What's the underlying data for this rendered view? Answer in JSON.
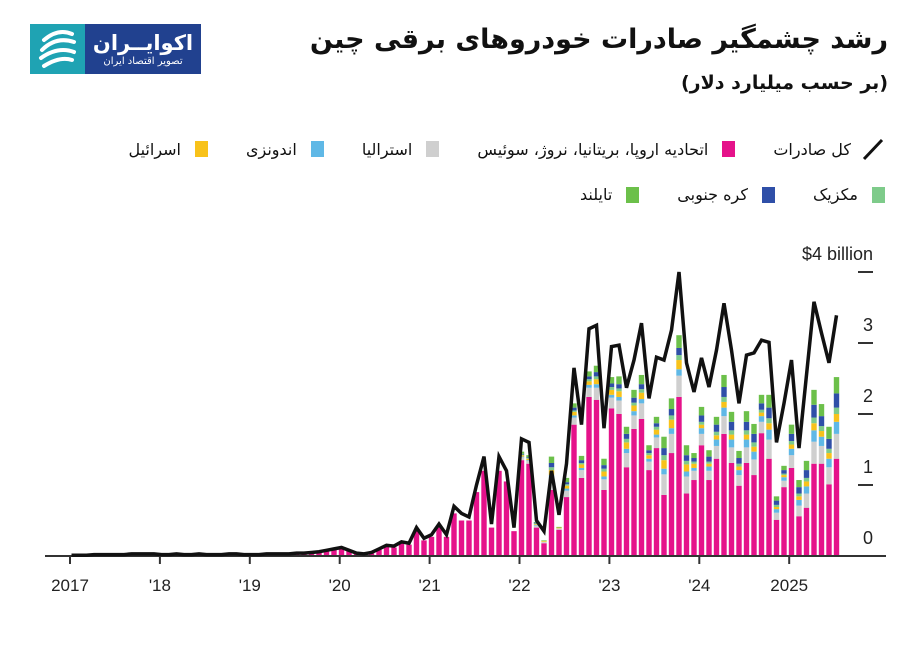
{
  "logo": {
    "name": "اکوایــران",
    "tagline": "تصویر اقتصاد ایران",
    "blue": "#21418f",
    "teal": "#1fa3b3"
  },
  "header": {
    "title": "رشد چشمگیر صادرات خودروهای برقی چین",
    "subtitle": "(بر حسب میلیارد دلار)"
  },
  "legend": {
    "row1": [
      {
        "label": "کل صادرات",
        "type": "line",
        "color": "#111111"
      },
      {
        "label": "اتحادیه اروپا، بریتانیا، نروژ، سوئیس",
        "type": "swatch",
        "color": "#e5128a"
      },
      {
        "label": "استرالیا",
        "type": "swatch",
        "color": "#cfcfcf"
      },
      {
        "label": "اندونزی",
        "type": "swatch",
        "color": "#5fb8e6"
      },
      {
        "label": "اسرائیل",
        "type": "swatch",
        "color": "#f8c21a"
      }
    ],
    "row2": [
      {
        "label": "مکزیک",
        "type": "swatch",
        "color": "#7ecb8a"
      },
      {
        "label": "کره جنوبی",
        "type": "swatch",
        "color": "#2f4fa8"
      },
      {
        "label": "تایلند",
        "type": "swatch",
        "color": "#6cc04a"
      }
    ]
  },
  "chart_data": {
    "type": "bar",
    "stacked": true,
    "frequency": "monthly",
    "xlabel": "",
    "ylabel": "",
    "x_ticks": [
      "2017",
      "'18",
      "'19",
      "'20",
      "'21",
      "'22",
      "'23",
      "'24",
      "'25"
    ],
    "x_tick_labels": [
      "2017",
      "'18",
      "'19",
      "'20",
      "'21",
      "'22",
      "'23",
      "'24",
      "2025"
    ],
    "y_ticks": [
      0,
      1,
      2,
      3,
      4
    ],
    "y_tick_labels": [
      "0",
      "1",
      "2",
      "3",
      "$4 billion"
    ],
    "ylim": [
      0,
      4
    ],
    "y_axis_side": "right",
    "grid": false,
    "line": {
      "name": "کل صادرات",
      "color": "#111111",
      "values": [
        0.01,
        0.01,
        0.01,
        0.02,
        0.02,
        0.02,
        0.02,
        0.02,
        0.03,
        0.03,
        0.03,
        0.03,
        0.02,
        0.02,
        0.03,
        0.02,
        0.02,
        0.03,
        0.02,
        0.02,
        0.02,
        0.03,
        0.03,
        0.02,
        0.02,
        0.02,
        0.03,
        0.03,
        0.03,
        0.03,
        0.04,
        0.04,
        0.05,
        0.06,
        0.08,
        0.1,
        0.12,
        0.08,
        0.04,
        0.03,
        0.05,
        0.1,
        0.15,
        0.14,
        0.2,
        0.18,
        0.4,
        0.25,
        0.3,
        0.45,
        0.3,
        0.7,
        0.6,
        0.55,
        1.0,
        1.4,
        0.45,
        1.4,
        1.2,
        0.4,
        1.65,
        1.6,
        0.5,
        0.35,
        1.2,
        0.58,
        1.3,
        2.65,
        1.85,
        3.2,
        3.25,
        1.8,
        2.95,
        2.97,
        2.37,
        2.76,
        3.28,
        2.22,
        2.8,
        2.76,
        3.18,
        4.0,
        2.72,
        2.31,
        2.79,
        2.38,
        2.9,
        3.56,
        2.9,
        2.15,
        2.83,
        2.86,
        3.04,
        3.01,
        1.6,
        2.15,
        2.76,
        1.52,
        2.55,
        3.58,
        3.14,
        2.72,
        3.39
      ]
    },
    "series": [
      {
        "name": "اتحادیه اروپا، بریتانیا، نروژ، سوئیس",
        "color": "#e5128a",
        "values": [
          0.01,
          0.01,
          0.01,
          0.02,
          0.02,
          0.02,
          0.02,
          0.02,
          0.03,
          0.03,
          0.03,
          0.03,
          0.02,
          0.02,
          0.03,
          0.02,
          0.02,
          0.03,
          0.02,
          0.02,
          0.02,
          0.03,
          0.03,
          0.02,
          0.02,
          0.02,
          0.03,
          0.03,
          0.03,
          0.03,
          0.04,
          0.04,
          0.05,
          0.06,
          0.08,
          0.1,
          0.1,
          0.07,
          0.03,
          0.02,
          0.04,
          0.09,
          0.13,
          0.12,
          0.18,
          0.16,
          0.35,
          0.22,
          0.27,
          0.4,
          0.27,
          0.6,
          0.5,
          0.5,
          0.9,
          1.2,
          0.4,
          1.2,
          1.05,
          0.35,
          1.35,
          1.3,
          0.4,
          0.18,
          0.93,
          0.37,
          0.83,
          1.85,
          1.1,
          2.24,
          2.2,
          0.93,
          2.08,
          2.0,
          1.25,
          1.79,
          1.93,
          1.21,
          1.52,
          0.86,
          1.45,
          2.24,
          0.88,
          1.07,
          1.56,
          1.07,
          1.37,
          1.72,
          1.31,
          0.99,
          1.31,
          1.14,
          1.73,
          1.37,
          0.51,
          0.97,
          1.24,
          0.56,
          0.68,
          1.3,
          1.3,
          1.01,
          1.37
        ]
      },
      {
        "name": "استرالیا",
        "color": "#cfcfcf",
        "values": [
          0,
          0,
          0,
          0,
          0,
          0,
          0,
          0,
          0,
          0,
          0,
          0,
          0,
          0,
          0,
          0,
          0,
          0,
          0,
          0,
          0,
          0,
          0,
          0,
          0,
          0,
          0,
          0,
          0,
          0,
          0,
          0,
          0,
          0,
          0,
          0,
          0,
          0,
          0,
          0,
          0,
          0,
          0,
          0,
          0,
          0,
          0,
          0,
          0,
          0,
          0,
          0,
          0,
          0,
          0,
          0,
          0,
          0,
          0,
          0,
          0.04,
          0.04,
          0.03,
          0.02,
          0.16,
          0.02,
          0.09,
          0.1,
          0.11,
          0.13,
          0.17,
          0.15,
          0.15,
          0.19,
          0.2,
          0.19,
          0.22,
          0.12,
          0.15,
          0.29,
          0.27,
          0.3,
          0.24,
          0.13,
          0.16,
          0.13,
          0.18,
          0.25,
          0.22,
          0.15,
          0.22,
          0.22,
          0.16,
          0.27,
          0.1,
          0.09,
          0.18,
          0.15,
          0.2,
          0.31,
          0.25,
          0.24,
          0.35
        ]
      },
      {
        "name": "اندونزی",
        "color": "#5fb8e6",
        "values": [
          0,
          0,
          0,
          0,
          0,
          0,
          0,
          0,
          0,
          0,
          0,
          0,
          0,
          0,
          0,
          0,
          0,
          0,
          0,
          0,
          0,
          0,
          0,
          0,
          0,
          0,
          0,
          0,
          0,
          0,
          0,
          0,
          0,
          0,
          0,
          0,
          0,
          0,
          0,
          0,
          0,
          0,
          0,
          0,
          0,
          0,
          0,
          0,
          0,
          0,
          0,
          0,
          0,
          0,
          0,
          0,
          0,
          0,
          0,
          0,
          0.01,
          0.01,
          0.01,
          0,
          0.05,
          0,
          0.03,
          0.03,
          0.03,
          0.04,
          0.05,
          0.04,
          0.04,
          0.05,
          0.06,
          0.06,
          0.06,
          0.04,
          0.04,
          0.08,
          0.08,
          0.09,
          0.07,
          0.04,
          0.08,
          0.06,
          0.09,
          0.12,
          0.11,
          0.07,
          0.11,
          0.11,
          0.08,
          0.14,
          0.05,
          0.05,
          0.09,
          0.08,
          0.1,
          0.16,
          0.13,
          0.12,
          0.17
        ]
      },
      {
        "name": "اسرائیل",
        "color": "#f8c21a",
        "values": [
          0,
          0,
          0,
          0,
          0,
          0,
          0,
          0,
          0,
          0,
          0,
          0,
          0,
          0,
          0,
          0,
          0,
          0,
          0,
          0,
          0,
          0,
          0,
          0,
          0,
          0,
          0,
          0,
          0,
          0,
          0,
          0,
          0,
          0,
          0,
          0,
          0,
          0,
          0,
          0,
          0,
          0,
          0,
          0,
          0,
          0,
          0,
          0,
          0,
          0,
          0,
          0,
          0,
          0,
          0,
          0,
          0,
          0,
          0,
          0,
          0.02,
          0.02,
          0.01,
          0.01,
          0.07,
          0.01,
          0.04,
          0.05,
          0.05,
          0.05,
          0.07,
          0.07,
          0.07,
          0.08,
          0.09,
          0.08,
          0.09,
          0.05,
          0.07,
          0.12,
          0.12,
          0.13,
          0.1,
          0.06,
          0.05,
          0.04,
          0.06,
          0.08,
          0.07,
          0.05,
          0.07,
          0.07,
          0.05,
          0.09,
          0.03,
          0.03,
          0.06,
          0.05,
          0.07,
          0.1,
          0.08,
          0.08,
          0.11
        ]
      },
      {
        "name": "مکزیک",
        "color": "#7ecb8a",
        "values": [
          0,
          0,
          0,
          0,
          0,
          0,
          0,
          0,
          0,
          0,
          0,
          0,
          0,
          0,
          0,
          0,
          0,
          0,
          0,
          0,
          0,
          0,
          0,
          0,
          0,
          0,
          0,
          0,
          0,
          0,
          0,
          0,
          0,
          0,
          0,
          0,
          0,
          0,
          0,
          0,
          0,
          0,
          0,
          0,
          0,
          0,
          0,
          0,
          0,
          0,
          0,
          0,
          0,
          0,
          0,
          0,
          0,
          0,
          0,
          0,
          0.01,
          0.01,
          0.01,
          0,
          0.04,
          0,
          0.02,
          0.02,
          0.02,
          0.03,
          0.04,
          0.04,
          0.04,
          0.04,
          0.05,
          0.04,
          0.05,
          0.03,
          0.04,
          0.07,
          0.06,
          0.07,
          0.05,
          0.03,
          0.04,
          0.03,
          0.05,
          0.07,
          0.06,
          0.04,
          0.06,
          0.06,
          0.04,
          0.07,
          0.03,
          0.02,
          0.05,
          0.04,
          0.05,
          0.08,
          0.07,
          0.06,
          0.09
        ]
      },
      {
        "name": "کره جنوبی",
        "color": "#2f4fa8",
        "values": [
          0,
          0,
          0,
          0,
          0,
          0,
          0,
          0,
          0,
          0,
          0,
          0,
          0,
          0,
          0,
          0,
          0,
          0,
          0,
          0,
          0,
          0,
          0,
          0,
          0,
          0,
          0,
          0,
          0,
          0,
          0,
          0,
          0,
          0,
          0,
          0,
          0,
          0,
          0,
          0,
          0,
          0,
          0,
          0,
          0,
          0,
          0,
          0,
          0,
          0,
          0,
          0,
          0,
          0,
          0,
          0,
          0,
          0,
          0,
          0,
          0.01,
          0.01,
          0.01,
          0,
          0.06,
          0,
          0.03,
          0.04,
          0.04,
          0.04,
          0.06,
          0.05,
          0.05,
          0.06,
          0.07,
          0.07,
          0.07,
          0.04,
          0.05,
          0.1,
          0.09,
          0.1,
          0.08,
          0.05,
          0.09,
          0.07,
          0.1,
          0.14,
          0.12,
          0.08,
          0.12,
          0.12,
          0.09,
          0.15,
          0.06,
          0.05,
          0.1,
          0.09,
          0.11,
          0.18,
          0.14,
          0.14,
          0.2
        ]
      },
      {
        "name": "تایلند",
        "color": "#6cc04a",
        "values": [
          0,
          0,
          0,
          0,
          0,
          0,
          0,
          0,
          0,
          0,
          0,
          0,
          0,
          0,
          0,
          0,
          0,
          0,
          0,
          0,
          0,
          0,
          0,
          0,
          0,
          0,
          0,
          0,
          0,
          0,
          0,
          0,
          0,
          0,
          0,
          0,
          0,
          0,
          0,
          0,
          0,
          0,
          0,
          0,
          0,
          0,
          0,
          0,
          0,
          0,
          0,
          0,
          0,
          0,
          0,
          0,
          0,
          0,
          0,
          0,
          0.03,
          0.03,
          0.01,
          0.01,
          0.09,
          0.01,
          0.06,
          0.06,
          0.06,
          0.07,
          0.09,
          0.09,
          0.09,
          0.11,
          0.1,
          0.11,
          0.13,
          0.07,
          0.09,
          0.16,
          0.15,
          0.18,
          0.14,
          0.07,
          0.12,
          0.09,
          0.11,
          0.17,
          0.14,
          0.1,
          0.15,
          0.14,
          0.12,
          0.18,
          0.06,
          0.06,
          0.13,
          0.1,
          0.13,
          0.21,
          0.17,
          0.17,
          0.23
        ]
      }
    ]
  }
}
